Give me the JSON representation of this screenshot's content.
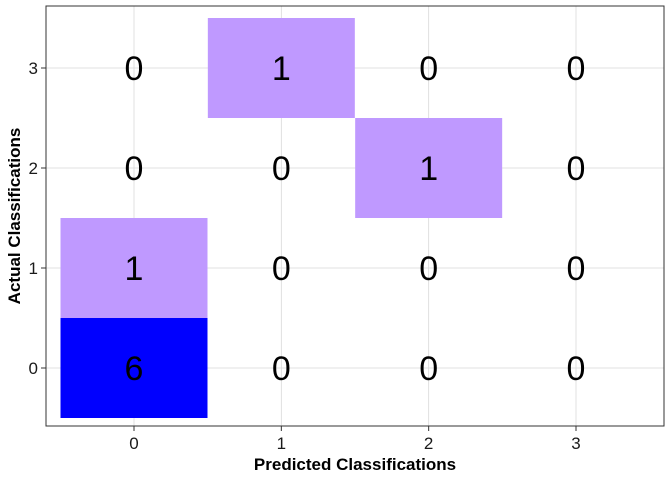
{
  "chart_data": {
    "type": "heatmap",
    "title": "",
    "xlabel": "Predicted Classifications",
    "ylabel": "Actual Classifications",
    "x_categories": [
      "0",
      "1",
      "2",
      "3"
    ],
    "y_categories": [
      "0",
      "1",
      "2",
      "3"
    ],
    "grid": true,
    "legend": "none",
    "cells": [
      {
        "actual": "0",
        "predicted": "0",
        "count": "6"
      },
      {
        "actual": "0",
        "predicted": "1",
        "count": "0"
      },
      {
        "actual": "0",
        "predicted": "2",
        "count": "0"
      },
      {
        "actual": "0",
        "predicted": "3",
        "count": "0"
      },
      {
        "actual": "1",
        "predicted": "0",
        "count": "1"
      },
      {
        "actual": "1",
        "predicted": "1",
        "count": "0"
      },
      {
        "actual": "1",
        "predicted": "2",
        "count": "0"
      },
      {
        "actual": "1",
        "predicted": "3",
        "count": "0"
      },
      {
        "actual": "2",
        "predicted": "0",
        "count": "0"
      },
      {
        "actual": "2",
        "predicted": "1",
        "count": "0"
      },
      {
        "actual": "2",
        "predicted": "2",
        "count": "1"
      },
      {
        "actual": "2",
        "predicted": "3",
        "count": "0"
      },
      {
        "actual": "3",
        "predicted": "0",
        "count": "0"
      },
      {
        "actual": "3",
        "predicted": "1",
        "count": "1"
      },
      {
        "actual": "3",
        "predicted": "2",
        "count": "0"
      },
      {
        "actual": "3",
        "predicted": "3",
        "count": "0"
      }
    ],
    "colors": {
      "high": "#0000ff",
      "low": "#bf99ff",
      "zero": "#ffffff",
      "panel_border": "#333333",
      "grid": "#d9d9d9"
    }
  }
}
